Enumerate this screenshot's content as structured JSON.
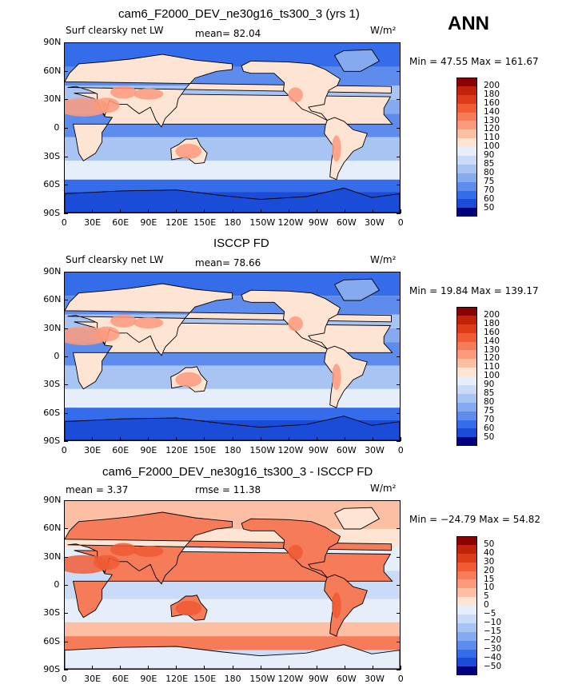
{
  "season": "ANN",
  "panels": [
    {
      "title": "cam6_F2000_DEV_ne30g16_ts300_3 (yrs 1)",
      "left_label": "Surf clearsky net LW",
      "mean_text": "mean=  82.04",
      "units": "W/m²",
      "minmax": "Min =  47.55 Max = 161.67",
      "colorbar": {
        "labels": [
          "200",
          "180",
          "160",
          "140",
          "130",
          "120",
          "110",
          "100",
          "90",
          "85",
          "80",
          "75",
          "70",
          "60",
          "50"
        ],
        "colors": [
          "#8b0000",
          "#c1220a",
          "#de3b1a",
          "#ee5b35",
          "#f67b58",
          "#fb9a7c",
          "#fcbfa4",
          "#fde4d3",
          "#e6eefa",
          "#c9dbf7",
          "#a8c4f3",
          "#86aaf0",
          "#5e8ced",
          "#346cea",
          "#1b4cd8",
          "#00007f"
        ]
      }
    },
    {
      "title": "ISCCP FD",
      "left_label": "Surf clearsky net LW",
      "mean_text": "mean=  78.66",
      "units": "W/m²",
      "minmax": "Min =  19.84 Max = 139.17",
      "colorbar": {
        "labels": [
          "200",
          "180",
          "160",
          "140",
          "130",
          "120",
          "110",
          "100",
          "90",
          "85",
          "80",
          "75",
          "70",
          "60",
          "50"
        ],
        "colors": [
          "#8b0000",
          "#c1220a",
          "#de3b1a",
          "#ee5b35",
          "#f67b58",
          "#fb9a7c",
          "#fcbfa4",
          "#fde4d3",
          "#e6eefa",
          "#c9dbf7",
          "#a8c4f3",
          "#86aaf0",
          "#5e8ced",
          "#346cea",
          "#1b4cd8",
          "#00007f"
        ]
      }
    },
    {
      "title": "cam6_F2000_DEV_ne30g16_ts300_3 - ISCCP FD",
      "left_label": "mean =    3.37",
      "mean_text": "rmse =   11.38",
      "units": "W/m²",
      "minmax": "Min = −24.79 Max =  54.82",
      "colorbar": {
        "labels": [
          "50",
          "40",
          "30",
          "20",
          "15",
          "10",
          "5",
          "0",
          "−5",
          "−10",
          "−15",
          "−20",
          "−30",
          "−40",
          "−50"
        ],
        "colors": [
          "#8b0000",
          "#c1220a",
          "#de3b1a",
          "#ee5b35",
          "#f67b58",
          "#fb9a7c",
          "#fcbfa4",
          "#fde4d3",
          "#e6eefa",
          "#c9dbf7",
          "#a8c4f3",
          "#86aaf0",
          "#5e8ced",
          "#346cea",
          "#1b4cd8",
          "#00007f"
        ]
      }
    }
  ],
  "chart_data": {
    "type": "heatmap",
    "x_ticks": [
      "0",
      "30E",
      "60E",
      "90E",
      "120E",
      "150E",
      "180",
      "150W",
      "120W",
      "90W",
      "60W",
      "30W",
      "0"
    ],
    "y_ticks": [
      "90N",
      "60N",
      "30N",
      "0",
      "30S",
      "60S",
      "90S"
    ]
  },
  "colors": {
    "land_hot": "#fb9a7c",
    "ocean_base": "#5e8ced",
    "coast": "#000000"
  }
}
